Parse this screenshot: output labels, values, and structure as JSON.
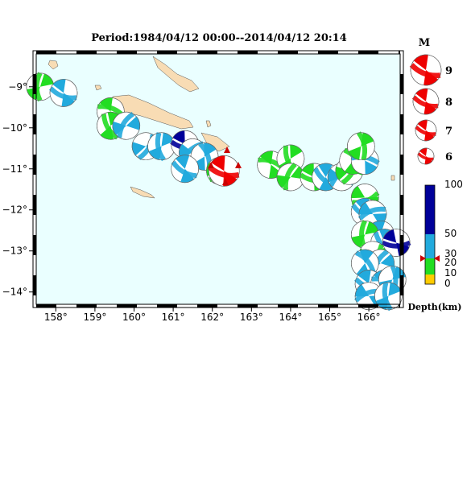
{
  "title": "Period:1984/04/12 00:00--2014/04/12 20:14",
  "colors": {
    "ocean": "#eaffff",
    "land": "#f8dcb4",
    "shallow": "#ffcc00",
    "shallow2": "#22dd22",
    "mid": "#22aadd",
    "deep": "#000099",
    "magnitude": "#ee0000",
    "marker": "#cc0000"
  },
  "map": {
    "lon_range": [
      157.5,
      166.8
    ],
    "lat_range": [
      -14.3,
      -8.2
    ],
    "lon_ticks": [
      {
        "value": 158,
        "label": "158°"
      },
      {
        "value": 159,
        "label": "159°"
      },
      {
        "value": 160,
        "label": "160°"
      },
      {
        "value": 161,
        "label": "161°"
      },
      {
        "value": 162,
        "label": "162°"
      },
      {
        "value": 163,
        "label": "163°"
      },
      {
        "value": 164,
        "label": "164°"
      },
      {
        "value": 165,
        "label": "165°"
      },
      {
        "value": 166,
        "label": "166°"
      }
    ],
    "lat_ticks": [
      {
        "value": -9,
        "label": "−9°"
      },
      {
        "value": -10,
        "label": "−10°"
      },
      {
        "value": -11,
        "label": "−11°"
      },
      {
        "value": -12,
        "label": "−12°"
      },
      {
        "value": -13,
        "label": "−13°"
      },
      {
        "value": -14,
        "label": "−14°"
      }
    ],
    "events": [
      {
        "lon": 157.6,
        "lat": -9.0,
        "color": "shallow2",
        "rot": 90
      },
      {
        "lon": 158.2,
        "lat": -9.15,
        "color": "mid",
        "rot": 20
      },
      {
        "lon": 159.4,
        "lat": -9.6,
        "color": "shallow2",
        "rot": 200
      },
      {
        "lon": 159.4,
        "lat": -9.95,
        "color": "shallow2",
        "rot": 60
      },
      {
        "lon": 159.8,
        "lat": -9.95,
        "color": "mid",
        "rot": 120
      },
      {
        "lon": 160.3,
        "lat": -10.45,
        "color": "mid",
        "rot": 300
      },
      {
        "lon": 160.7,
        "lat": -10.45,
        "color": "mid",
        "rot": 80
      },
      {
        "lon": 161.3,
        "lat": -10.4,
        "color": "deep",
        "rot": 10
      },
      {
        "lon": 161.5,
        "lat": -10.6,
        "color": "mid",
        "rot": 140
      },
      {
        "lon": 161.8,
        "lat": -10.7,
        "color": "mid",
        "rot": 250
      },
      {
        "lon": 161.3,
        "lat": -11.0,
        "color": "mid",
        "rot": 30
      },
      {
        "lon": 162.2,
        "lat": -11.05,
        "color": "shallow2",
        "rot": 320
      },
      {
        "lon": 162.3,
        "lat": -11.05,
        "color": "magnitude",
        "rot": 15
      },
      {
        "lon": 163.5,
        "lat": -10.9,
        "color": "shallow2",
        "rot": 200
      },
      {
        "lon": 164.0,
        "lat": -10.75,
        "color": "shallow2",
        "rot": 70
      },
      {
        "lon": 164.0,
        "lat": -11.2,
        "color": "shallow2",
        "rot": 110
      },
      {
        "lon": 164.6,
        "lat": -11.2,
        "color": "shallow2",
        "rot": 10
      },
      {
        "lon": 164.9,
        "lat": -11.2,
        "color": "mid",
        "rot": 40
      },
      {
        "lon": 165.3,
        "lat": -11.2,
        "color": "mid",
        "rot": 140
      },
      {
        "lon": 165.5,
        "lat": -11.05,
        "color": "shallow2",
        "rot": 300
      },
      {
        "lon": 165.6,
        "lat": -10.8,
        "color": "shallow2",
        "rot": 230
      },
      {
        "lon": 165.9,
        "lat": -10.8,
        "color": "mid",
        "rot": 190
      },
      {
        "lon": 165.8,
        "lat": -10.45,
        "color": "shallow2",
        "rot": 260
      },
      {
        "lon": 165.9,
        "lat": -11.7,
        "color": "shallow2",
        "rot": 340
      },
      {
        "lon": 165.9,
        "lat": -12.05,
        "color": "mid",
        "rot": 30
      },
      {
        "lon": 166.1,
        "lat": -12.1,
        "color": "mid",
        "rot": 160
      },
      {
        "lon": 166.3,
        "lat": -12.6,
        "color": "mid",
        "rot": 210
      },
      {
        "lon": 165.9,
        "lat": -12.6,
        "color": "shallow2",
        "rot": 90
      },
      {
        "lon": 166.4,
        "lat": -12.8,
        "color": "mid",
        "rot": 50
      },
      {
        "lon": 166.7,
        "lat": -12.8,
        "color": "deep",
        "rot": 0
      },
      {
        "lon": 166.1,
        "lat": -13.1,
        "color": "shallow2",
        "rot": 310
      },
      {
        "lon": 166.3,
        "lat": -13.3,
        "color": "mid",
        "rot": 120
      },
      {
        "lon": 165.9,
        "lat": -13.3,
        "color": "mid",
        "rot": 230
      },
      {
        "lon": 166.0,
        "lat": -13.8,
        "color": "mid",
        "rot": 20
      },
      {
        "lon": 166.4,
        "lat": -13.8,
        "color": "mid",
        "rot": 200
      },
      {
        "lon": 166.6,
        "lat": -13.7,
        "color": "mid",
        "rot": 270
      },
      {
        "lon": 166.0,
        "lat": -14.1,
        "color": "mid",
        "rot": 160
      },
      {
        "lon": 166.5,
        "lat": -14.1,
        "color": "mid",
        "rot": 80
      }
    ]
  },
  "legend": {
    "magnitude_title": "M",
    "magnitudes": [
      "9",
      "8",
      "7",
      "6"
    ],
    "colorbar_labels": [
      "100",
      "50",
      "30",
      "20",
      "10",
      "0"
    ],
    "colorbar_title": "Depth(km)"
  }
}
